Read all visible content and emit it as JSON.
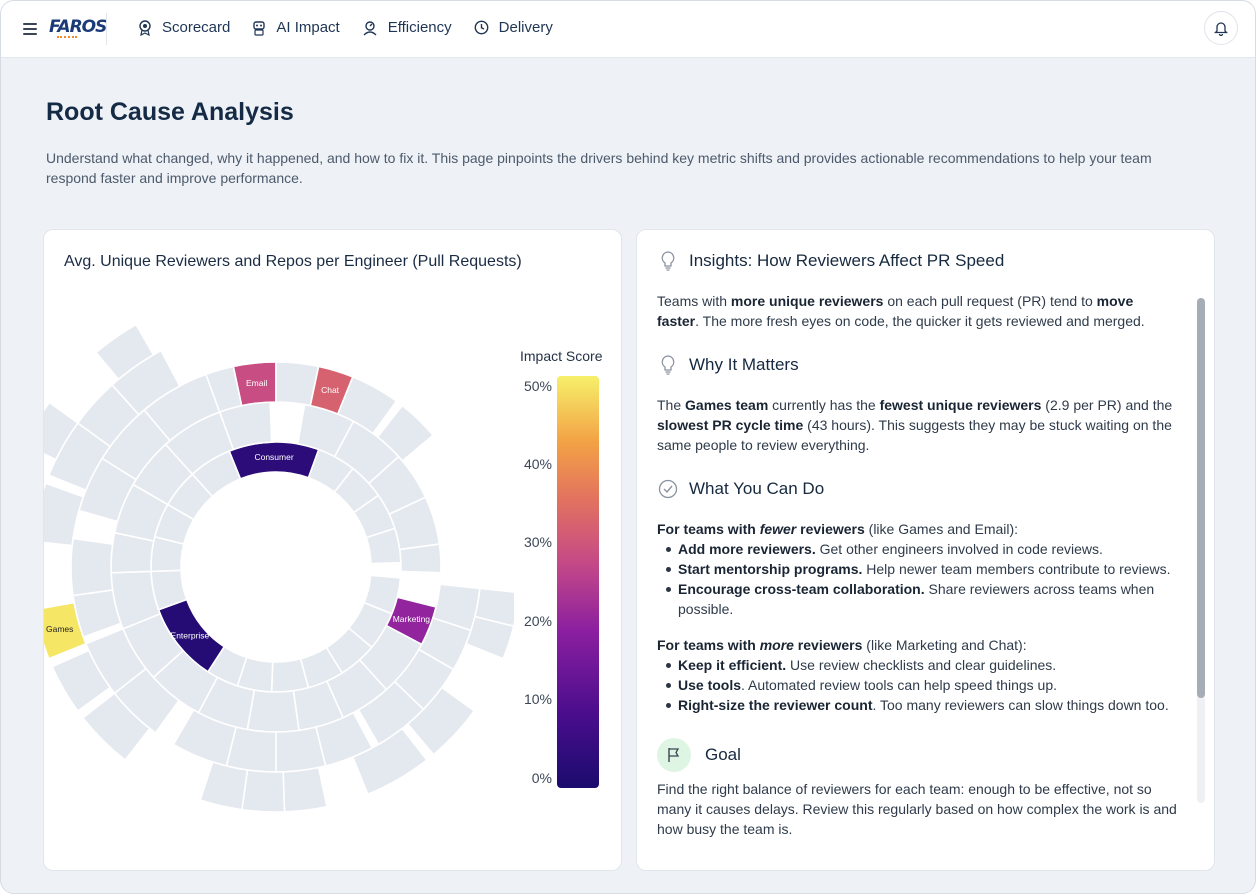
{
  "topbar": {
    "logo": "FAROS",
    "nav": [
      {
        "label": "Scorecard",
        "icon": "award-icon"
      },
      {
        "label": "AI Impact",
        "icon": "robot-icon"
      },
      {
        "label": "Efficiency",
        "icon": "gauge-icon"
      },
      {
        "label": "Delivery",
        "icon": "clock-icon"
      }
    ]
  },
  "page": {
    "title": "Root Cause Analysis",
    "description": "Understand what changed, why it happened, and how to fix it. This page pinpoints the drivers behind key metric shifts and provides actionable recommendations to help your team respond faster and improve performance."
  },
  "chart_card": {
    "title": "Avg. Unique Reviewers and Repos per Engineer (Pull Requests)",
    "legend_title": "Impact Score",
    "ticks": [
      "50%",
      "40%",
      "30%",
      "20%",
      "10%",
      "0%"
    ]
  },
  "chart_data": {
    "type": "sunburst",
    "title": "Avg. Unique Reviewers and Repos per Engineer (Pull Requests)",
    "color_scale": {
      "label": "Impact Score",
      "min": 0,
      "max": 50,
      "unit": "%"
    },
    "highlighted_segments": [
      {
        "label": "Consumer",
        "ring": "inner",
        "impact_pct": 3
      },
      {
        "label": "Enterprise",
        "ring": "inner",
        "impact_pct": 2
      },
      {
        "label": "Email",
        "ring": "middle",
        "impact_pct": 28
      },
      {
        "label": "Chat",
        "ring": "middle",
        "impact_pct": 32
      },
      {
        "label": "Marketing",
        "ring": "middle",
        "impact_pct": 20
      },
      {
        "label": "Games",
        "ring": "outer",
        "impact_pct": 49
      }
    ]
  },
  "insights": {
    "header": "Insights: How Reviewers Affect PR Speed",
    "intro": {
      "t1": "Teams with ",
      "b1": "more unique reviewers",
      "t2": " on each pull request (PR) tend to ",
      "b2": "move faster",
      "t3": ". The more fresh eyes on code, the quicker it gets reviewed and merged."
    },
    "why_header": "Why It Matters",
    "why": {
      "t1": "The ",
      "b1": "Games team",
      "t2": " currently has the ",
      "b2": "fewest unique reviewers",
      "t3": " (2.9 per PR) and the ",
      "b3": "slowest PR cycle time",
      "t4": " (43 hours). This suggests they may be stuck waiting on the same people to review everything."
    },
    "do_header": "What You Can Do",
    "fewer": {
      "lead_b1": "For teams with ",
      "lead_i": "fewer",
      "lead_b2": " reviewers",
      "lead_t": " (like Games and Email):",
      "items": [
        {
          "b": "Add more reviewers.",
          "t": " Get other engineers involved in code reviews."
        },
        {
          "b": "Start mentorship programs.",
          "t": " Help newer team members contribute to reviews."
        },
        {
          "b": "Encourage cross-team collaboration.",
          "t": " Share reviewers across teams when possible."
        }
      ]
    },
    "more": {
      "lead_b1": "For teams with ",
      "lead_i": "more",
      "lead_b2": " reviewers",
      "lead_t": " (like Marketing and Chat):",
      "items": [
        {
          "b": "Keep it efficient.",
          "t": " Use review checklists and clear guidelines."
        },
        {
          "b": "Use tools",
          "t": ". Automated review tools can help speed things up."
        },
        {
          "b": "Right-size the reviewer count",
          "t": ". Too many reviewers can slow things down too."
        }
      ]
    },
    "goal_header": "Goal",
    "goal": "Find the right balance of reviewers for each team: enough to be effective, not so many it causes delays. Review this regularly based on how complex the work is and how busy the team is."
  },
  "colors": {
    "grey_segment": "#e4e8ef",
    "accent_navy": "#142a45"
  }
}
